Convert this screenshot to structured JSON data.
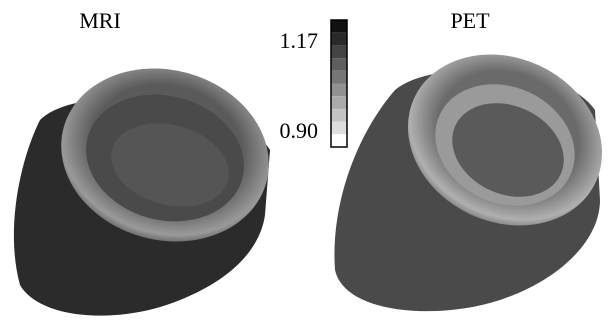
{
  "panels": [
    {
      "label": "MRI"
    },
    {
      "label": "PET"
    }
  ],
  "colorbar": {
    "max_label": "1.17",
    "min_label": "0.90"
  }
}
